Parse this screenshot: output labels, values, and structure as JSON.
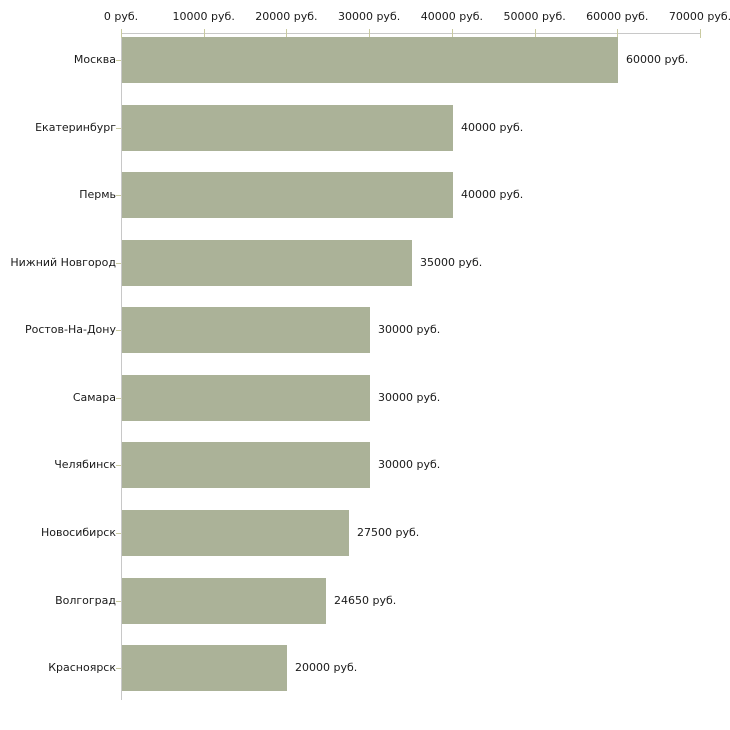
{
  "chart_data": {
    "type": "bar",
    "orientation": "horizontal",
    "categories": [
      "Москва",
      "Екатеринбург",
      "Пермь",
      "Нижний Новгород",
      "Ростов-На-Дону",
      "Самара",
      "Челябинск",
      "Новосибирск",
      "Волгоград",
      "Красноярск"
    ],
    "values": [
      60000,
      40000,
      40000,
      35000,
      30000,
      30000,
      30000,
      27500,
      24650,
      20000
    ],
    "value_labels": [
      "60000 руб.",
      "40000 руб.",
      "40000 руб.",
      "35000 руб.",
      "30000 руб.",
      "30000 руб.",
      "30000 руб.",
      "27500 руб.",
      "24650 руб.",
      "20000 руб."
    ],
    "x_axis": {
      "min": 0,
      "max": 70000,
      "tick_interval": 10000,
      "tick_labels": [
        "0 руб.",
        "10000 руб.",
        "20000 руб.",
        "30000 руб.",
        "40000 руб.",
        "50000 руб.",
        "60000 руб.",
        "70000 руб."
      ],
      "position": "top"
    },
    "grid": false,
    "legend": false,
    "colors": {
      "bar": "#abb298",
      "axis_line": "#c8c8c8",
      "tick": "#c9caa0",
      "text": "#1a1a1a",
      "background": "#ffffff"
    }
  }
}
